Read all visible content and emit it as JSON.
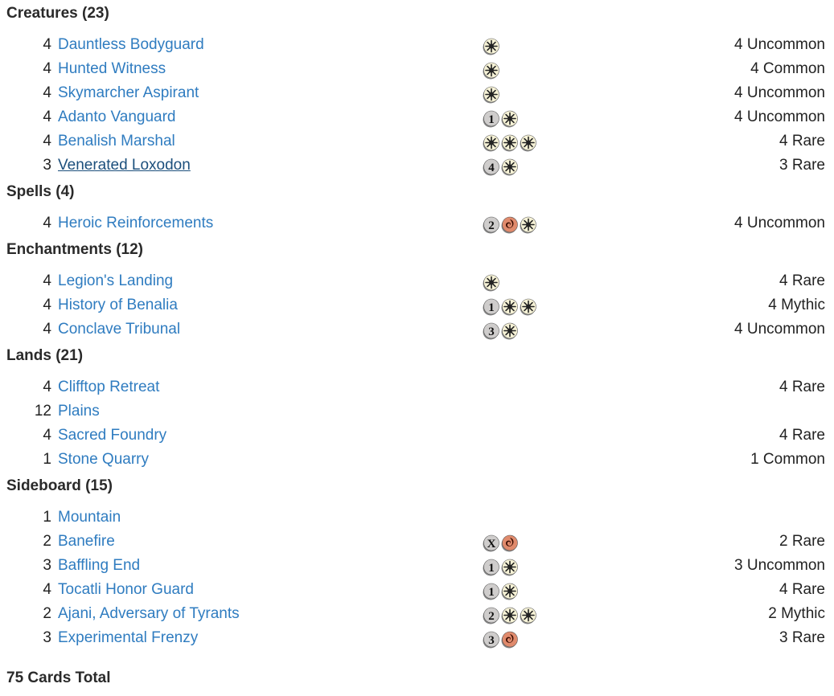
{
  "sections": [
    {
      "title": "Creatures (23)",
      "cards": [
        {
          "qty": "4",
          "name": "Dauntless Bodyguard",
          "cost": [
            "W"
          ],
          "rarity": "4 Uncommon"
        },
        {
          "qty": "4",
          "name": "Hunted Witness",
          "cost": [
            "W"
          ],
          "rarity": "4 Common"
        },
        {
          "qty": "4",
          "name": "Skymarcher Aspirant",
          "cost": [
            "W"
          ],
          "rarity": "4 Uncommon"
        },
        {
          "qty": "4",
          "name": "Adanto Vanguard",
          "cost": [
            "1",
            "W"
          ],
          "rarity": "4 Uncommon"
        },
        {
          "qty": "4",
          "name": "Benalish Marshal",
          "cost": [
            "W",
            "W",
            "W"
          ],
          "rarity": "4 Rare"
        },
        {
          "qty": "3",
          "name": "Venerated Loxodon",
          "cost": [
            "4",
            "W"
          ],
          "rarity": "3 Rare",
          "hover": true
        }
      ]
    },
    {
      "title": "Spells (4)",
      "cards": [
        {
          "qty": "4",
          "name": "Heroic Reinforcements",
          "cost": [
            "2",
            "R",
            "W"
          ],
          "rarity": "4 Uncommon"
        }
      ]
    },
    {
      "title": "Enchantments (12)",
      "cards": [
        {
          "qty": "4",
          "name": "Legion's Landing",
          "cost": [
            "W"
          ],
          "rarity": "4 Rare"
        },
        {
          "qty": "4",
          "name": "History of Benalia",
          "cost": [
            "1",
            "W",
            "W"
          ],
          "rarity": "4 Mythic"
        },
        {
          "qty": "4",
          "name": "Conclave Tribunal",
          "cost": [
            "3",
            "W"
          ],
          "rarity": "4 Uncommon"
        }
      ]
    },
    {
      "title": "Lands (21)",
      "cards": [
        {
          "qty": "4",
          "name": "Clifftop Retreat",
          "cost": [],
          "rarity": "4 Rare"
        },
        {
          "qty": "12",
          "name": "Plains",
          "cost": [],
          "rarity": ""
        },
        {
          "qty": "4",
          "name": "Sacred Foundry",
          "cost": [],
          "rarity": "4 Rare"
        },
        {
          "qty": "1",
          "name": "Stone Quarry",
          "cost": [],
          "rarity": "1 Common"
        }
      ]
    },
    {
      "title": "Sideboard (15)",
      "cards": [
        {
          "qty": "1",
          "name": "Mountain",
          "cost": [],
          "rarity": ""
        },
        {
          "qty": "2",
          "name": "Banefire",
          "cost": [
            "X",
            "R"
          ],
          "rarity": "2 Rare"
        },
        {
          "qty": "3",
          "name": "Baffling End",
          "cost": [
            "1",
            "W"
          ],
          "rarity": "3 Uncommon"
        },
        {
          "qty": "4",
          "name": "Tocatli Honor Guard",
          "cost": [
            "1",
            "W"
          ],
          "rarity": "4 Rare"
        },
        {
          "qty": "2",
          "name": "Ajani, Adversary of Tyrants",
          "cost": [
            "2",
            "W",
            "W"
          ],
          "rarity": "2 Mythic"
        },
        {
          "qty": "3",
          "name": "Experimental Frenzy",
          "cost": [
            "3",
            "R"
          ],
          "rarity": "3 Rare"
        }
      ]
    }
  ],
  "total": "75 Cards Total",
  "colors": {
    "link": "#2f7cc0",
    "link_hover": "#1c4f7c",
    "white_mana": "#f6f2d6",
    "red_mana": "#e08a6c",
    "generic_mana": "#cfcdcc"
  },
  "icons": {
    "W": "white-mana-icon",
    "R": "red-mana-icon",
    "generic": "generic-mana-icon"
  }
}
